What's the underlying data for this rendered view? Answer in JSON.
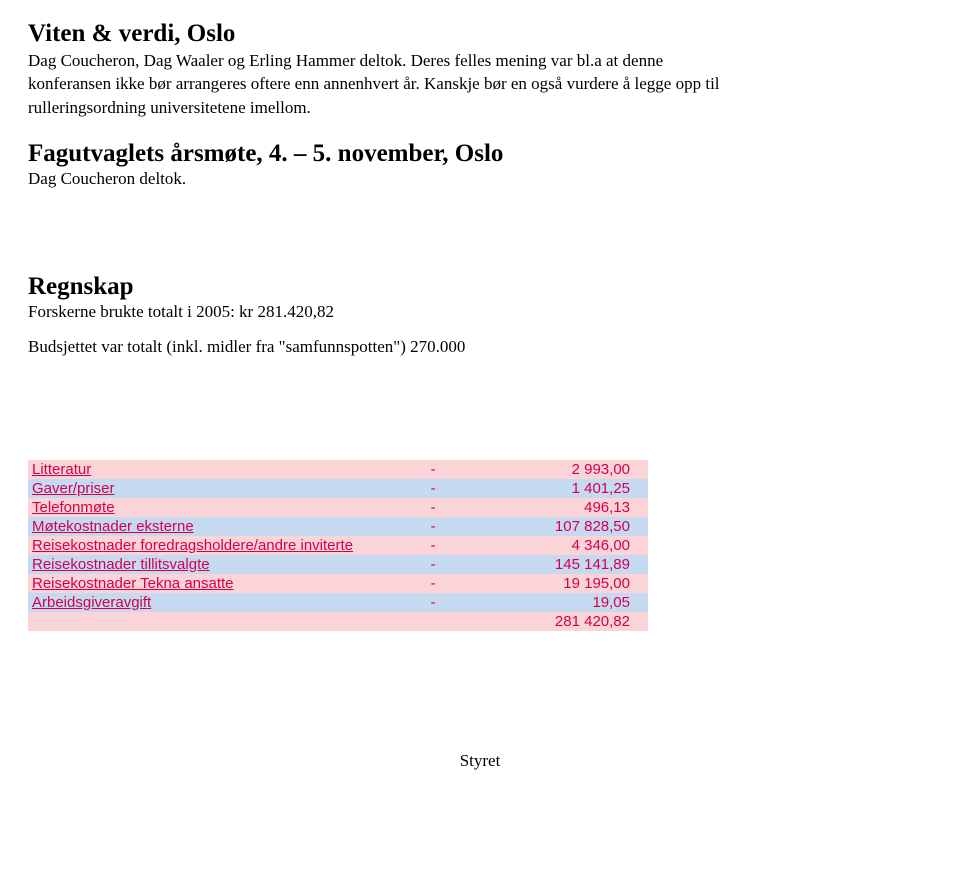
{
  "section1": {
    "heading": "Viten & verdi, Oslo",
    "line1": "Dag Coucheron, Dag Waaler og Erling Hammer deltok. Deres felles mening var bl.a at denne",
    "line2": "konferansen ikke bør arrangeres oftere enn annenhvert år. Kanskje bør en også vurdere å legge opp til",
    "line3": "rulleringsordning universitetene imellom."
  },
  "section2": {
    "heading": "Fagutvaglets årsmøte, 4. – 5. november, Oslo",
    "line1": "Dag Coucheron deltok."
  },
  "section3": {
    "heading": "Regnskap",
    "line1": "Forskerne brukte totalt i 2005: kr 281.420,82",
    "line2": "Budsjettet var totalt (inkl. midler fra \"samfunnspotten\") 270.000"
  },
  "table": {
    "rows": [
      {
        "label": "Litteratur",
        "dash": "-",
        "value": "2 993,00",
        "cls": "pink"
      },
      {
        "label": "Gaver/priser",
        "dash": "-",
        "value": "1 401,25",
        "cls": "blue"
      },
      {
        "label": "Telefonmøte",
        "dash": "-",
        "value": "496,13",
        "cls": "pink"
      },
      {
        "label": "Møtekostnader eksterne",
        "dash": "-",
        "value": "107 828,50",
        "cls": "blue"
      },
      {
        "label": "Reisekostnader foredragsholdere/andre inviterte",
        "dash": "-",
        "value": "4 346,00",
        "cls": "pink"
      },
      {
        "label": "Reisekostnader tillitsvalgte",
        "dash": "-",
        "value": "145 141,89",
        "cls": "blue"
      },
      {
        "label": "Reisekostnader Tekna ansatte",
        "dash": "-",
        "value": "19 195,00",
        "cls": "pink"
      },
      {
        "label": "Arbeidsgiveravgift",
        "dash": "-",
        "value": "19,05",
        "cls": "blue"
      }
    ],
    "total": {
      "label": "",
      "dash": "",
      "value": "281 420,82",
      "cls": "pink"
    }
  },
  "footer": "Styret"
}
